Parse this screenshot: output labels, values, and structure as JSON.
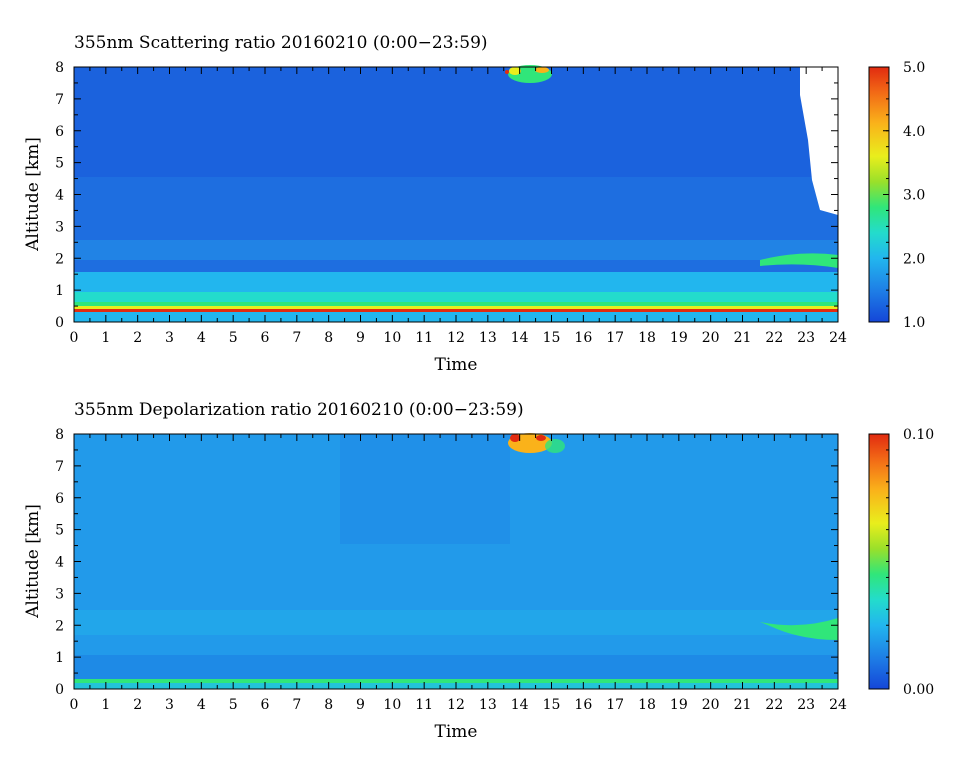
{
  "chart_data": [
    {
      "type": "heatmap",
      "title": "355nm Scattering ratio  20160210 (0:00−23:59)",
      "xlabel": "Time",
      "ylabel": "Altitude [km]",
      "xlim": [
        0,
        24
      ],
      "ylim": [
        0,
        8
      ],
      "x_ticks": [
        "0",
        "1",
        "2",
        "3",
        "4",
        "5",
        "6",
        "7",
        "8",
        "9",
        "10",
        "11",
        "12",
        "13",
        "14",
        "15",
        "16",
        "17",
        "18",
        "19",
        "20",
        "21",
        "22",
        "23",
        "24"
      ],
      "y_ticks": [
        "0",
        "1",
        "2",
        "3",
        "4",
        "5",
        "6",
        "7",
        "8"
      ],
      "colorbar": {
        "range": [
          1.0,
          5.0
        ],
        "ticks": [
          "1.0",
          "2.0",
          "3.0",
          "4.0",
          "5.0"
        ]
      },
      "features": [
        {
          "name": "near-surface layer",
          "time": [
            0,
            24
          ],
          "altitude": [
            0.3,
            0.6
          ],
          "value": 3.2
        },
        {
          "name": "boundary layer",
          "time": [
            0,
            24
          ],
          "altitude": [
            0.6,
            1.5
          ],
          "value": 1.9
        },
        {
          "name": "upper cloud",
          "time": [
            13.6,
            15.2
          ],
          "altitude": [
            7.4,
            8.0
          ],
          "value": 3.6
        },
        {
          "name": "lowered layer",
          "time": [
            21.5,
            24
          ],
          "altitude": [
            1.6,
            2.2
          ],
          "value": 2.6
        },
        {
          "name": "no-data region",
          "time": [
            22.8,
            24
          ],
          "altitude": [
            3.4,
            8.0
          ],
          "value": null
        }
      ],
      "colors": [
        "#1446d8",
        "#1e7de6",
        "#22b6ee",
        "#23dccc",
        "#30e67a",
        "#9ae02a",
        "#e9ee1c",
        "#fab21a",
        "#f26a16",
        "#e12b10"
      ]
    },
    {
      "type": "heatmap",
      "title": "355nm Depolarization ratio  20160210 (0:00−23:59)",
      "xlabel": "Time",
      "ylabel": "Altitude [km]",
      "xlim": [
        0,
        24
      ],
      "ylim": [
        0,
        8
      ],
      "x_ticks": [
        "0",
        "1",
        "2",
        "3",
        "4",
        "5",
        "6",
        "7",
        "8",
        "9",
        "10",
        "11",
        "12",
        "13",
        "14",
        "15",
        "16",
        "17",
        "18",
        "19",
        "20",
        "21",
        "22",
        "23",
        "24"
      ],
      "y_ticks": [
        "0",
        "1",
        "2",
        "3",
        "4",
        "5",
        "6",
        "7",
        "8"
      ],
      "colorbar": {
        "range": [
          0.0,
          0.1
        ],
        "ticks": [
          "0.00",
          "0.10"
        ]
      },
      "features": [
        {
          "name": "surface layer",
          "time": [
            0,
            24
          ],
          "altitude": [
            0.0,
            0.2
          ],
          "value": 0.045
        },
        {
          "name": "upper cloud",
          "time": [
            13.6,
            15.2
          ],
          "altitude": [
            7.3,
            8.0
          ],
          "value": 0.08
        },
        {
          "name": "lowered layer",
          "time": [
            21.5,
            24
          ],
          "altitude": [
            1.6,
            2.2
          ],
          "value": 0.045
        }
      ],
      "colors": [
        "#1446d8",
        "#1e7de6",
        "#22b6ee",
        "#23dccc",
        "#30e67a",
        "#9ae02a",
        "#e9ee1c",
        "#fab21a",
        "#f26a16",
        "#e12b10"
      ]
    }
  ]
}
